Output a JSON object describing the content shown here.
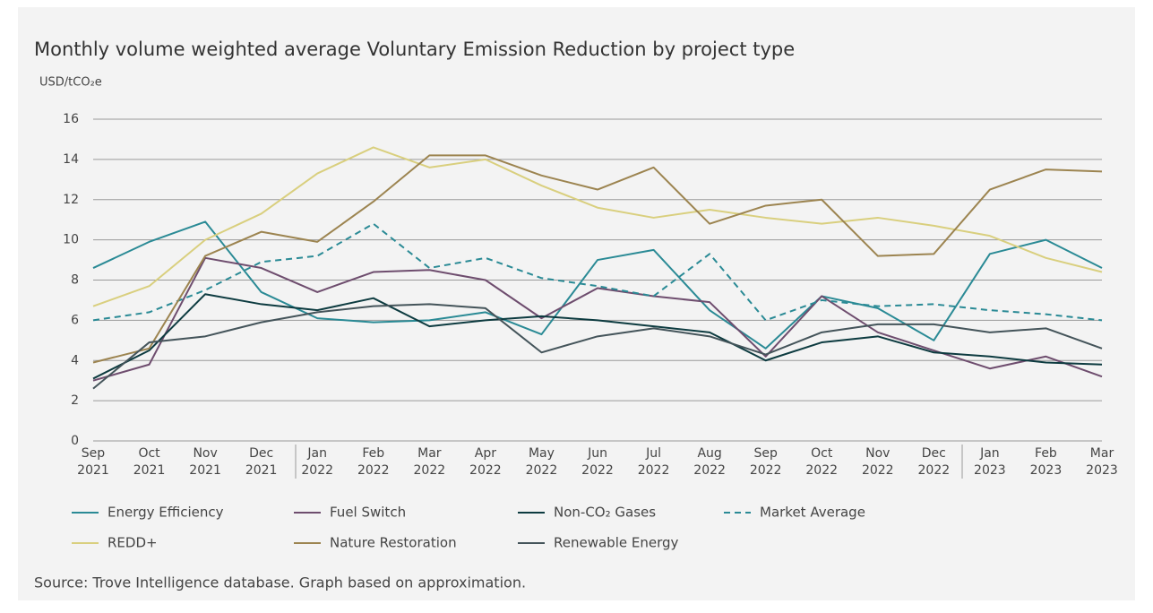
{
  "chart_data": {
    "type": "line",
    "title": "Monthly volume weighted average Voluntary Emission Reduction by project type",
    "y_label": "USD/tCO₂e",
    "source": "Source: Trove Intelligence database. Graph based on approximation.",
    "categories": [
      "Sep 2021",
      "Oct 2021",
      "Nov 2021",
      "Dec 2021",
      "Jan 2022",
      "Feb 2022",
      "Mar 2022",
      "Apr 2022",
      "May 2022",
      "Jun 2022",
      "Jul 2022",
      "Aug 2022",
      "Sep 2022",
      "Oct 2022",
      "Nov 2022",
      "Dec 2022",
      "Jan 2023",
      "Feb 2023",
      "Mar 2023"
    ],
    "series": [
      {
        "name": "Energy Efficiency",
        "color": "#2a8a95",
        "values": [
          8.6,
          9.9,
          10.9,
          7.4,
          6.1,
          5.9,
          6.0,
          6.4,
          5.3,
          9.0,
          9.5,
          6.5,
          4.6,
          7.2,
          6.6,
          5.0,
          9.3,
          10.0,
          8.6
        ]
      },
      {
        "name": "Fuel Switch",
        "color": "#6e4d6e",
        "values": [
          3.0,
          3.8,
          9.1,
          8.6,
          7.4,
          8.4,
          8.5,
          8.0,
          6.1,
          7.6,
          7.2,
          6.9,
          4.2,
          7.2,
          5.4,
          4.5,
          3.6,
          4.2,
          3.2
        ]
      },
      {
        "name": "Non-CO₂ Gases",
        "color": "#0d3b40",
        "values": [
          3.1,
          4.5,
          7.3,
          6.8,
          6.5,
          7.1,
          5.7,
          6.0,
          6.2,
          6.0,
          5.7,
          5.4,
          4.0,
          4.9,
          5.2,
          4.4,
          4.2,
          3.9,
          3.8
        ]
      },
      {
        "name": "Market Average",
        "color": "#2a8a95",
        "dashed": true,
        "values": [
          6.0,
          6.4,
          7.5,
          8.9,
          9.2,
          10.8,
          8.6,
          9.1,
          8.1,
          7.7,
          7.2,
          9.3,
          6.0,
          7.0,
          6.7,
          6.8,
          6.5,
          6.3,
          6.0
        ]
      },
      {
        "name": "REDD+",
        "color": "#d9cf7e",
        "values": [
          6.7,
          7.7,
          10.0,
          11.3,
          13.3,
          14.6,
          13.6,
          14.0,
          12.7,
          11.6,
          11.1,
          11.5,
          11.1,
          10.8,
          11.1,
          10.7,
          10.2,
          9.1,
          8.4
        ]
      },
      {
        "name": "Nature Restoration",
        "color": "#9c8450",
        "values": [
          3.9,
          4.6,
          9.2,
          10.4,
          9.9,
          11.9,
          14.2,
          14.2,
          13.2,
          12.5,
          13.6,
          10.8,
          11.7,
          12.0,
          9.2,
          9.3,
          12.5,
          13.5,
          13.4
        ]
      },
      {
        "name": "Renewable Energy",
        "color": "#44545a",
        "values": [
          2.6,
          4.9,
          5.2,
          5.9,
          6.4,
          6.7,
          6.8,
          6.6,
          4.4,
          5.2,
          5.6,
          5.2,
          4.3,
          5.4,
          5.8,
          5.8,
          5.4,
          5.6,
          4.6
        ]
      }
    ],
    "ylim": [
      0,
      16
    ],
    "yticks": [
      0,
      2,
      4,
      6,
      8,
      10,
      12,
      14,
      16
    ],
    "grid": true
  }
}
